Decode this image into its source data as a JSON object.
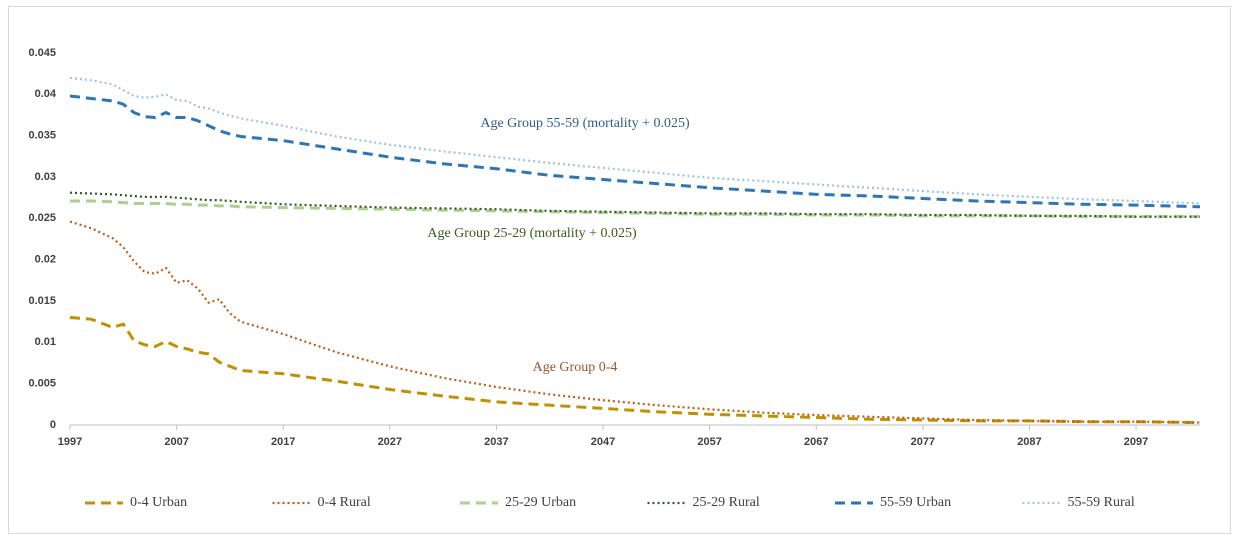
{
  "chart_data": {
    "type": "line",
    "x": [
      1997,
      1999,
      2001,
      2002,
      2003,
      2004,
      2005,
      2006,
      2007,
      2008,
      2009,
      2010,
      2011,
      2012,
      2013,
      2017,
      2022,
      2027,
      2032,
      2037,
      2042,
      2047,
      2052,
      2057,
      2062,
      2067,
      2072,
      2077,
      2082,
      2087,
      2092,
      2097,
      2103
    ],
    "xlim": [
      1997,
      2103
    ],
    "xticks": [
      1997,
      2007,
      2017,
      2027,
      2037,
      2047,
      2057,
      2067,
      2077,
      2087,
      2097
    ],
    "ylim": [
      0,
      0.045
    ],
    "yticks": [
      0,
      0.005,
      0.01,
      0.015,
      0.02,
      0.025,
      0.03,
      0.035,
      0.04,
      0.045
    ],
    "grid": false,
    "legend": "bottom",
    "annotations": [
      {
        "text": "Age Group 55-59 (mortality + 0.025)",
        "color": "#2e5c8a"
      },
      {
        "text": "Age Group 25-29 (mortality + 0.025)",
        "color": "#3d5a1f"
      },
      {
        "text": "Age Group 0-4",
        "color": "#a0522d"
      }
    ],
    "series": [
      {
        "name": "0-4 Urban",
        "color": "#bf9000",
        "style": "dashed",
        "values": [
          0.013,
          0.0128,
          0.0118,
          0.0122,
          0.0102,
          0.0097,
          0.0095,
          0.0101,
          0.0095,
          0.0092,
          0.0088,
          0.0086,
          0.0076,
          0.0071,
          0.0066,
          0.0062,
          0.0053,
          0.0043,
          0.0035,
          0.0028,
          0.0024,
          0.002,
          0.0016,
          0.0013,
          0.0011,
          0.0009,
          0.0007,
          0.0006,
          0.0005,
          0.0005,
          0.0004,
          0.0004,
          0.0003
        ]
      },
      {
        "name": "0-4 Rural",
        "color": "#c55a11",
        "style": "dotted",
        "values": [
          0.0246,
          0.0238,
          0.0226,
          0.0215,
          0.0198,
          0.0185,
          0.0183,
          0.019,
          0.0172,
          0.0175,
          0.0165,
          0.0148,
          0.0152,
          0.0135,
          0.0125,
          0.011,
          0.0088,
          0.0071,
          0.0057,
          0.0046,
          0.0037,
          0.003,
          0.0024,
          0.0019,
          0.0015,
          0.0012,
          0.001,
          0.0008,
          0.0006,
          0.0005,
          0.0004,
          0.0004,
          0.0003
        ]
      },
      {
        "name": "25-29 Urban",
        "color": "#a9d18e",
        "style": "dashed",
        "values": [
          0.0271,
          0.0271,
          0.027,
          0.0269,
          0.0268,
          0.0268,
          0.0268,
          0.0268,
          0.0267,
          0.0267,
          0.0266,
          0.0266,
          0.0265,
          0.0265,
          0.0264,
          0.0263,
          0.0262,
          0.0261,
          0.026,
          0.0259,
          0.0258,
          0.0257,
          0.0256,
          0.0255,
          0.0255,
          0.0254,
          0.0254,
          0.0253,
          0.0253,
          0.0253,
          0.0252,
          0.0252,
          0.0252
        ]
      },
      {
        "name": "25-29 Rural",
        "color": "#375623",
        "style": "dotted",
        "values": [
          0.0281,
          0.028,
          0.0279,
          0.0278,
          0.0277,
          0.0276,
          0.0276,
          0.0276,
          0.0275,
          0.0274,
          0.0273,
          0.0272,
          0.0272,
          0.0271,
          0.027,
          0.0267,
          0.0265,
          0.0263,
          0.0262,
          0.0261,
          0.0259,
          0.0258,
          0.0257,
          0.0256,
          0.0256,
          0.0255,
          0.0255,
          0.0254,
          0.0254,
          0.0253,
          0.0253,
          0.0252,
          0.0252
        ]
      },
      {
        "name": "55-59 Urban",
        "color": "#2e75b6",
        "style": "dashed",
        "values": [
          0.0398,
          0.0395,
          0.0392,
          0.0388,
          0.0378,
          0.0373,
          0.0372,
          0.0378,
          0.0372,
          0.0372,
          0.0368,
          0.0362,
          0.0356,
          0.0352,
          0.0349,
          0.0344,
          0.0334,
          0.0324,
          0.0316,
          0.031,
          0.0302,
          0.0297,
          0.0292,
          0.0287,
          0.0283,
          0.0279,
          0.0277,
          0.0274,
          0.0271,
          0.0269,
          0.0267,
          0.0266,
          0.0264
        ]
      },
      {
        "name": "55-59 Rural",
        "color": "#9dc3e6",
        "style": "dotted",
        "values": [
          0.042,
          0.0417,
          0.0412,
          0.0405,
          0.0398,
          0.0396,
          0.0397,
          0.04,
          0.0393,
          0.0392,
          0.0385,
          0.0383,
          0.0378,
          0.0374,
          0.0371,
          0.0362,
          0.0349,
          0.0339,
          0.0331,
          0.0324,
          0.0317,
          0.0311,
          0.0305,
          0.0299,
          0.0295,
          0.0291,
          0.0287,
          0.0283,
          0.0279,
          0.0276,
          0.0273,
          0.0271,
          0.0268
        ]
      }
    ]
  }
}
